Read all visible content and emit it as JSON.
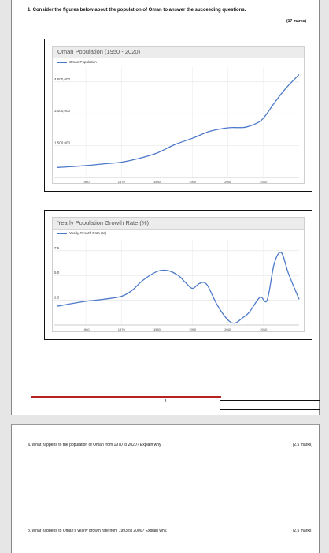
{
  "question": {
    "title": "1. Consider the figures below about the population of Oman to answer the succeeding questions.",
    "marks": "(17 marks)"
  },
  "chart_data": [
    {
      "type": "line",
      "title": "Oman Population (1950 - 2020)",
      "legend": "Oman Population",
      "legend_position": "top-left",
      "x_ticks": [
        "1960",
        "1970",
        "1980",
        "1990",
        "2000",
        "2010"
      ],
      "y_ticks": [
        "4,500,000",
        "3,000,000",
        "1,500,000"
      ],
      "xlim": [
        1952,
        2020
      ],
      "ylim": [
        0,
        5200000
      ],
      "grid": true,
      "series": [
        {
          "name": "Oman Population",
          "color": "#4d79c9",
          "x": [
            1952,
            1955,
            1960,
            1965,
            1970,
            1975,
            1980,
            1985,
            1990,
            1995,
            2000,
            2003,
            2005,
            2008,
            2010,
            2013,
            2016,
            2020
          ],
          "y": [
            470000,
            500000,
            560000,
            640000,
            720000,
            900000,
            1150000,
            1550000,
            1850000,
            2180000,
            2340000,
            2350000,
            2370000,
            2550000,
            2800000,
            3500000,
            4150000,
            4850000
          ]
        }
      ]
    },
    {
      "type": "line",
      "title": "Yearly Population Growth Rate (%)",
      "legend": "Yearly Growth Rate (%)",
      "legend_position": "top-left",
      "x_ticks": [
        "1960",
        "1970",
        "1980",
        "1990",
        "2000",
        "2010"
      ],
      "y_ticks": [
        "7.5",
        "5.0",
        "2.5"
      ],
      "xlim": [
        1952,
        2020
      ],
      "ylim": [
        0,
        8.6
      ],
      "grid": true,
      "series": [
        {
          "name": "Yearly Growth Rate (%)",
          "color": "#4d79c9",
          "x": [
            1952,
            1955,
            1960,
            1965,
            1970,
            1973,
            1976,
            1980,
            1983,
            1986,
            1988,
            1990,
            1992,
            1994,
            1997,
            2000,
            2002,
            2004,
            2006,
            2009,
            2011,
            2013,
            2015,
            2017,
            2020
          ],
          "y": [
            1.9,
            2.1,
            2.4,
            2.6,
            2.9,
            3.5,
            4.5,
            5.4,
            5.5,
            5.0,
            4.3,
            3.7,
            4.2,
            4.1,
            2.0,
            0.5,
            0.2,
            0.7,
            1.3,
            2.8,
            2.5,
            6.2,
            7.3,
            5.2,
            2.6
          ]
        }
      ]
    }
  ],
  "page_number": "3",
  "parts": [
    {
      "text": "a. What happens to the population of Oman from 1970 to 2020? Explain why.",
      "marks": "(2.5 marks)"
    },
    {
      "text": "b. What happens to Oman's yearly growth rate from 1993 till 2000? Explain why.",
      "marks": "(2.5 marks)"
    }
  ]
}
